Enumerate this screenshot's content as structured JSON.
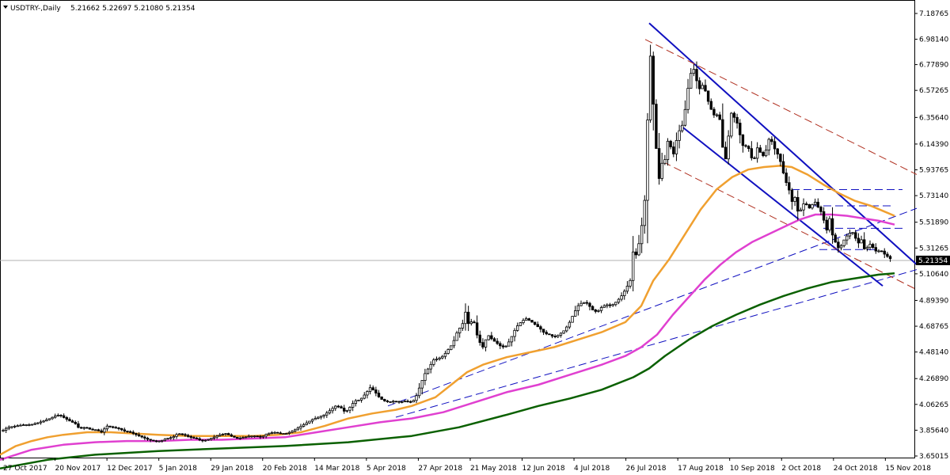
{
  "header": {
    "symbol": "USDTRY-,Daily",
    "ohlc": "5.21662 5.22697 5.21080 5.21354"
  },
  "current_price_label": "5.21354",
  "chart_data": {
    "type": "candlestick",
    "title": "USDTRY-,Daily",
    "ylim": [
      3.65015,
      7.26
    ],
    "y_ticks": [
      "7.18765",
      "6.98140",
      "6.77890",
      "6.57265",
      "6.35640",
      "6.14390",
      "5.93765",
      "5.73140",
      "5.51890",
      "5.31265",
      "5.10640",
      "4.89390",
      "4.68765",
      "4.48140",
      "4.26890",
      "4.06265",
      "3.85640",
      "3.65015"
    ],
    "x_ticks": [
      "27 Oct 2017",
      "20 Nov 2017",
      "12 Dec 2017",
      "5 Jan 2018",
      "29 Jan 2018",
      "20 Feb 2018",
      "14 Mar 2018",
      "5 Apr 2018",
      "27 Apr 2018",
      "21 May 2018",
      "12 Jun 2018",
      "4 Jul 2018",
      "26 Jul 2018",
      "17 Aug 2018",
      "10 Sep 2018",
      "2 Oct 2018",
      "24 Oct 2018",
      "15 Nov 2018"
    ],
    "last_close": 5.21354,
    "close_path": [
      [
        0,
        3.84
      ],
      [
        10,
        3.88
      ],
      [
        20,
        3.89
      ],
      [
        30,
        3.9
      ],
      [
        38,
        3.9
      ],
      [
        45,
        3.91
      ],
      [
        55,
        3.93
      ],
      [
        63,
        3.95
      ],
      [
        70,
        3.97
      ],
      [
        75,
        3.98
      ],
      [
        80,
        3.96
      ],
      [
        88,
        3.93
      ],
      [
        95,
        3.91
      ],
      [
        100,
        3.87
      ],
      [
        108,
        3.88
      ],
      [
        115,
        3.86
      ],
      [
        122,
        3.86
      ],
      [
        128,
        3.84
      ],
      [
        135,
        3.89
      ],
      [
        142,
        3.88
      ],
      [
        150,
        3.87
      ],
      [
        157,
        3.85
      ],
      [
        165,
        3.84
      ],
      [
        172,
        3.82
      ],
      [
        180,
        3.8
      ],
      [
        188,
        3.78
      ],
      [
        195,
        3.77
      ],
      [
        203,
        3.77
      ],
      [
        210,
        3.79
      ],
      [
        218,
        3.8
      ],
      [
        225,
        3.83
      ],
      [
        232,
        3.82
      ],
      [
        240,
        3.8
      ],
      [
        248,
        3.79
      ],
      [
        255,
        3.77
      ],
      [
        262,
        3.78
      ],
      [
        270,
        3.8
      ],
      [
        278,
        3.82
      ],
      [
        285,
        3.83
      ],
      [
        292,
        3.81
      ],
      [
        300,
        3.79
      ],
      [
        308,
        3.8
      ],
      [
        316,
        3.81
      ],
      [
        324,
        3.81
      ],
      [
        330,
        3.8
      ],
      [
        338,
        3.83
      ],
      [
        346,
        3.84
      ],
      [
        354,
        3.83
      ],
      [
        362,
        3.83
      ],
      [
        370,
        3.85
      ],
      [
        378,
        3.88
      ],
      [
        386,
        3.91
      ],
      [
        394,
        3.94
      ],
      [
        402,
        3.96
      ],
      [
        410,
        3.98
      ],
      [
        418,
        4.02
      ],
      [
        424,
        4.05
      ],
      [
        430,
        4.04
      ],
      [
        436,
        4.0
      ],
      [
        442,
        4.04
      ],
      [
        448,
        4.09
      ],
      [
        455,
        4.1
      ],
      [
        462,
        4.15
      ],
      [
        468,
        4.2
      ],
      [
        474,
        4.16
      ],
      [
        480,
        4.11
      ],
      [
        486,
        4.09
      ],
      [
        492,
        4.08
      ],
      [
        498,
        4.09
      ],
      [
        505,
        4.08
      ],
      [
        512,
        4.09
      ],
      [
        518,
        4.08
      ],
      [
        524,
        4.1
      ],
      [
        530,
        4.2
      ],
      [
        536,
        4.3
      ],
      [
        542,
        4.36
      ],
      [
        548,
        4.42
      ],
      [
        554,
        4.43
      ],
      [
        560,
        4.45
      ],
      [
        566,
        4.5
      ],
      [
        572,
        4.55
      ],
      [
        578,
        4.65
      ],
      [
        584,
        4.7
      ],
      [
        588,
        4.8
      ],
      [
        592,
        4.7
      ],
      [
        598,
        4.74
      ],
      [
        604,
        4.58
      ],
      [
        610,
        4.52
      ],
      [
        616,
        4.62
      ],
      [
        622,
        4.58
      ],
      [
        628,
        4.55
      ],
      [
        634,
        4.52
      ],
      [
        640,
        4.53
      ],
      [
        646,
        4.6
      ],
      [
        652,
        4.68
      ],
      [
        658,
        4.72
      ],
      [
        664,
        4.75
      ],
      [
        670,
        4.73
      ],
      [
        676,
        4.7
      ],
      [
        682,
        4.67
      ],
      [
        688,
        4.63
      ],
      [
        694,
        4.62
      ],
      [
        700,
        4.6
      ],
      [
        706,
        4.62
      ],
      [
        712,
        4.65
      ],
      [
        718,
        4.7
      ],
      [
        724,
        4.78
      ],
      [
        730,
        4.85
      ],
      [
        736,
        4.88
      ],
      [
        742,
        4.87
      ],
      [
        748,
        4.82
      ],
      [
        754,
        4.8
      ],
      [
        760,
        4.84
      ],
      [
        766,
        4.86
      ],
      [
        772,
        4.85
      ],
      [
        778,
        4.88
      ],
      [
        784,
        4.92
      ],
      [
        790,
        4.98
      ],
      [
        796,
        5.05
      ],
      [
        800,
        5.3
      ],
      [
        804,
        5.25
      ],
      [
        808,
        5.38
      ],
      [
        812,
        5.55
      ],
      [
        816,
        5.8
      ],
      [
        820,
        6.9
      ],
      [
        823,
        6.8
      ],
      [
        826,
        6.35
      ],
      [
        829,
        6.1
      ],
      [
        832,
        5.85
      ],
      [
        835,
        5.95
      ],
      [
        838,
        6.05
      ],
      [
        841,
        6.0
      ],
      [
        844,
        6.2
      ],
      [
        848,
        6.1
      ],
      [
        852,
        6.05
      ],
      [
        856,
        6.25
      ],
      [
        860,
        6.25
      ],
      [
        864,
        6.35
      ],
      [
        868,
        6.55
      ],
      [
        872,
        6.7
      ],
      [
        876,
        6.75
      ],
      [
        880,
        6.65
      ],
      [
        884,
        6.58
      ],
      [
        888,
        6.62
      ],
      [
        892,
        6.55
      ],
      [
        896,
        6.45
      ],
      [
        900,
        6.4
      ],
      [
        904,
        6.35
      ],
      [
        908,
        6.42
      ],
      [
        912,
        6.15
      ],
      [
        916,
        6.0
      ],
      [
        920,
        6.2
      ],
      [
        924,
        6.4
      ],
      [
        928,
        6.35
      ],
      [
        932,
        6.3
      ],
      [
        936,
        6.18
      ],
      [
        940,
        6.1
      ],
      [
        944,
        6.15
      ],
      [
        948,
        6.05
      ],
      [
        952,
        6.0
      ],
      [
        956,
        6.12
      ],
      [
        960,
        6.08
      ],
      [
        964,
        6.05
      ],
      [
        968,
        6.1
      ],
      [
        972,
        6.2
      ],
      [
        976,
        6.15
      ],
      [
        980,
        6.08
      ],
      [
        984,
        6.05
      ],
      [
        988,
        5.95
      ],
      [
        992,
        5.85
      ],
      [
        996,
        5.8
      ],
      [
        1000,
        5.68
      ],
      [
        1004,
        5.72
      ],
      [
        1008,
        5.6
      ],
      [
        1012,
        5.62
      ],
      [
        1016,
        5.68
      ],
      [
        1020,
        5.65
      ],
      [
        1024,
        5.62
      ],
      [
        1028,
        5.7
      ],
      [
        1032,
        5.65
      ],
      [
        1036,
        5.62
      ],
      [
        1040,
        5.55
      ],
      [
        1044,
        5.45
      ],
      [
        1048,
        5.55
      ],
      [
        1052,
        5.4
      ],
      [
        1056,
        5.35
      ],
      [
        1060,
        5.3
      ],
      [
        1064,
        5.35
      ],
      [
        1068,
        5.4
      ],
      [
        1072,
        5.42
      ],
      [
        1076,
        5.45
      ],
      [
        1080,
        5.4
      ],
      [
        1084,
        5.35
      ],
      [
        1088,
        5.38
      ],
      [
        1092,
        5.3
      ],
      [
        1096,
        5.32
      ],
      [
        1100,
        5.35
      ],
      [
        1104,
        5.3
      ],
      [
        1108,
        5.28
      ],
      [
        1112,
        5.3
      ],
      [
        1116,
        5.27
      ],
      [
        1120,
        5.25
      ],
      [
        1124,
        5.23
      ],
      [
        1128,
        5.21354
      ]
    ],
    "series": [
      {
        "name": "",
        "color": "#f0a030",
        "points": [
          [
            0,
            3.66
          ],
          [
            20,
            3.73
          ],
          [
            40,
            3.77
          ],
          [
            60,
            3.8
          ],
          [
            80,
            3.82
          ],
          [
            110,
            3.84
          ],
          [
            140,
            3.84
          ],
          [
            170,
            3.83
          ],
          [
            200,
            3.82
          ],
          [
            240,
            3.81
          ],
          [
            280,
            3.81
          ],
          [
            320,
            3.81
          ],
          [
            350,
            3.82
          ],
          [
            380,
            3.84
          ],
          [
            410,
            3.89
          ],
          [
            440,
            3.95
          ],
          [
            470,
            3.99
          ],
          [
            500,
            4.02
          ],
          [
            520,
            4.05
          ],
          [
            550,
            4.12
          ],
          [
            570,
            4.22
          ],
          [
            590,
            4.32
          ],
          [
            610,
            4.38
          ],
          [
            640,
            4.44
          ],
          [
            670,
            4.48
          ],
          [
            700,
            4.52
          ],
          [
            730,
            4.58
          ],
          [
            760,
            4.64
          ],
          [
            790,
            4.72
          ],
          [
            810,
            4.85
          ],
          [
            825,
            5.05
          ],
          [
            845,
            5.22
          ],
          [
            865,
            5.42
          ],
          [
            885,
            5.62
          ],
          [
            905,
            5.78
          ],
          [
            925,
            5.88
          ],
          [
            945,
            5.94
          ],
          [
            965,
            5.96
          ],
          [
            985,
            5.97
          ],
          [
            1000,
            5.96
          ],
          [
            1020,
            5.9
          ],
          [
            1040,
            5.82
          ],
          [
            1060,
            5.75
          ],
          [
            1080,
            5.69
          ],
          [
            1100,
            5.65
          ],
          [
            1115,
            5.61
          ],
          [
            1130,
            5.57
          ]
        ]
      },
      {
        "name": "",
        "color": "#e040d0",
        "points": [
          [
            0,
            3.62
          ],
          [
            40,
            3.7
          ],
          [
            80,
            3.74
          ],
          [
            120,
            3.76
          ],
          [
            160,
            3.77
          ],
          [
            200,
            3.77
          ],
          [
            240,
            3.78
          ],
          [
            280,
            3.78
          ],
          [
            320,
            3.79
          ],
          [
            360,
            3.8
          ],
          [
            400,
            3.84
          ],
          [
            440,
            3.88
          ],
          [
            480,
            3.92
          ],
          [
            520,
            3.95
          ],
          [
            560,
            4.0
          ],
          [
            600,
            4.08
          ],
          [
            640,
            4.16
          ],
          [
            680,
            4.22
          ],
          [
            720,
            4.3
          ],
          [
            760,
            4.38
          ],
          [
            790,
            4.45
          ],
          [
            810,
            4.52
          ],
          [
            830,
            4.62
          ],
          [
            850,
            4.78
          ],
          [
            870,
            4.92
          ],
          [
            890,
            5.06
          ],
          [
            910,
            5.18
          ],
          [
            930,
            5.28
          ],
          [
            950,
            5.36
          ],
          [
            970,
            5.42
          ],
          [
            990,
            5.48
          ],
          [
            1010,
            5.54
          ],
          [
            1030,
            5.58
          ],
          [
            1050,
            5.58
          ],
          [
            1070,
            5.57
          ],
          [
            1090,
            5.55
          ],
          [
            1110,
            5.53
          ],
          [
            1130,
            5.5
          ]
        ]
      },
      {
        "name": "",
        "color": "#0a6000",
        "points": [
          [
            0,
            3.55
          ],
          [
            60,
            3.62
          ],
          [
            120,
            3.66
          ],
          [
            200,
            3.69
          ],
          [
            280,
            3.71
          ],
          [
            360,
            3.73
          ],
          [
            440,
            3.76
          ],
          [
            520,
            3.81
          ],
          [
            580,
            3.88
          ],
          [
            640,
            3.98
          ],
          [
            680,
            4.05
          ],
          [
            720,
            4.11
          ],
          [
            760,
            4.18
          ],
          [
            800,
            4.28
          ],
          [
            820,
            4.35
          ],
          [
            840,
            4.45
          ],
          [
            870,
            4.58
          ],
          [
            900,
            4.69
          ],
          [
            930,
            4.78
          ],
          [
            960,
            4.86
          ],
          [
            990,
            4.93
          ],
          [
            1020,
            4.99
          ],
          [
            1050,
            5.04
          ],
          [
            1080,
            5.07
          ],
          [
            1110,
            5.1
          ],
          [
            1130,
            5.11
          ]
        ]
      }
    ],
    "trendlines": [
      {
        "style": "solid",
        "color": "#1010c0",
        "from": [
          820,
          7.11
        ],
        "to": [
          1158,
          5.18
        ]
      },
      {
        "style": "solid",
        "color": "#1010c0",
        "from": [
          860,
          6.29
        ],
        "to": [
          1115,
          5.01
        ]
      },
      {
        "style": "dashed",
        "color": "#1010c0",
        "from": [
          490,
          4.05
        ],
        "to": [
          1158,
          5.63
        ]
      },
      {
        "style": "dashed",
        "color": "#1010c0",
        "from": [
          500,
          3.96
        ],
        "to": [
          1158,
          5.14
        ]
      },
      {
        "style": "dashed",
        "color": "#b03020",
        "from": [
          815,
          6.98
        ],
        "to": [
          1158,
          5.9
        ]
      },
      {
        "style": "dashed",
        "color": "#b03020",
        "from": [
          838,
          6.0
        ],
        "to": [
          1158,
          4.98
        ]
      },
      {
        "style": "dashed",
        "color": "#1010c0",
        "from": [
          1000,
          5.78
        ],
        "to": [
          1140,
          5.78
        ]
      },
      {
        "style": "dashed",
        "color": "#1010c0",
        "from": [
          1025,
          5.65
        ],
        "to": [
          1125,
          5.65
        ]
      },
      {
        "style": "dashed",
        "color": "#1010c0",
        "from": [
          1040,
          5.47
        ],
        "to": [
          1140,
          5.47
        ]
      },
      {
        "style": "dashed",
        "color": "#1010c0",
        "from": [
          1035,
          5.3
        ],
        "to": [
          1110,
          5.3
        ]
      }
    ]
  }
}
